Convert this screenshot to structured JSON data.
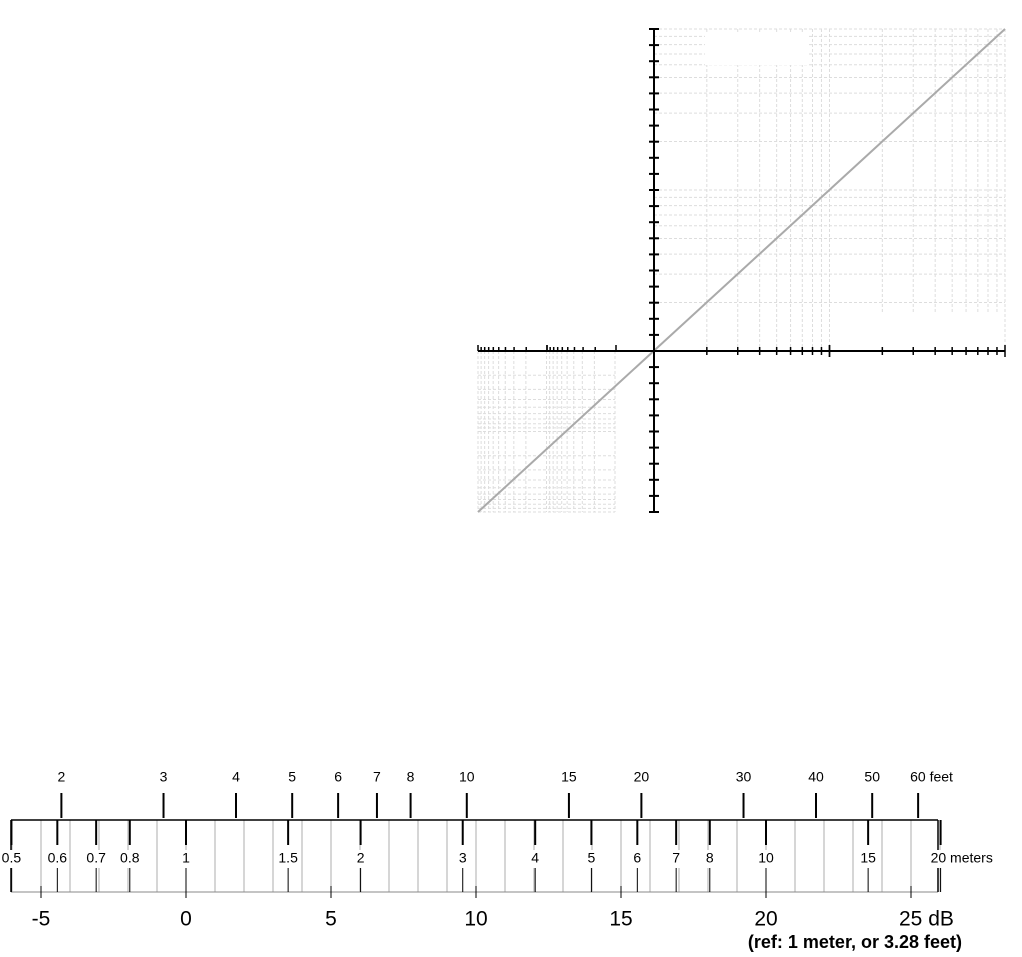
{
  "scale": {
    "reference": {
      "meters": 1,
      "feet": 3.28
    },
    "feet_ticks": [
      {
        "value": 2,
        "label": "2"
      },
      {
        "value": 3,
        "label": "3"
      },
      {
        "value": 4,
        "label": "4"
      },
      {
        "value": 5,
        "label": "5"
      },
      {
        "value": 6,
        "label": "6"
      },
      {
        "value": 7,
        "label": "7"
      },
      {
        "value": 8,
        "label": "8"
      },
      {
        "value": 10,
        "label": "10"
      },
      {
        "value": 15,
        "label": "15"
      },
      {
        "value": 20,
        "label": "20"
      },
      {
        "value": 30,
        "label": "30"
      },
      {
        "value": 40,
        "label": "40"
      },
      {
        "value": 50,
        "label": "50"
      },
      {
        "value": 60,
        "label": "60 feet"
      }
    ],
    "meter_ticks": [
      {
        "value": 0.5,
        "label": "0.5"
      },
      {
        "value": 0.6,
        "label": "0.6"
      },
      {
        "value": 0.7,
        "label": "0.7"
      },
      {
        "value": 0.8,
        "label": "0.8"
      },
      {
        "value": 1,
        "label": "1"
      },
      {
        "value": 1.5,
        "label": "1.5"
      },
      {
        "value": 2,
        "label": "2"
      },
      {
        "value": 3,
        "label": "3"
      },
      {
        "value": 4,
        "label": "4"
      },
      {
        "value": 5,
        "label": "5"
      },
      {
        "value": 6,
        "label": "6"
      },
      {
        "value": 7,
        "label": "7"
      },
      {
        "value": 8,
        "label": "8"
      },
      {
        "value": 10,
        "label": "10"
      },
      {
        "value": 15,
        "label": "15"
      },
      {
        "value": 20,
        "label": "20 meters"
      }
    ],
    "db_ticks": [
      -5,
      0,
      5,
      10,
      15,
      20,
      {
        "value": 25,
        "label": "25 dB"
      }
    ],
    "caption": "(ref: 1 meter, or 3.28 feet)"
  }
}
